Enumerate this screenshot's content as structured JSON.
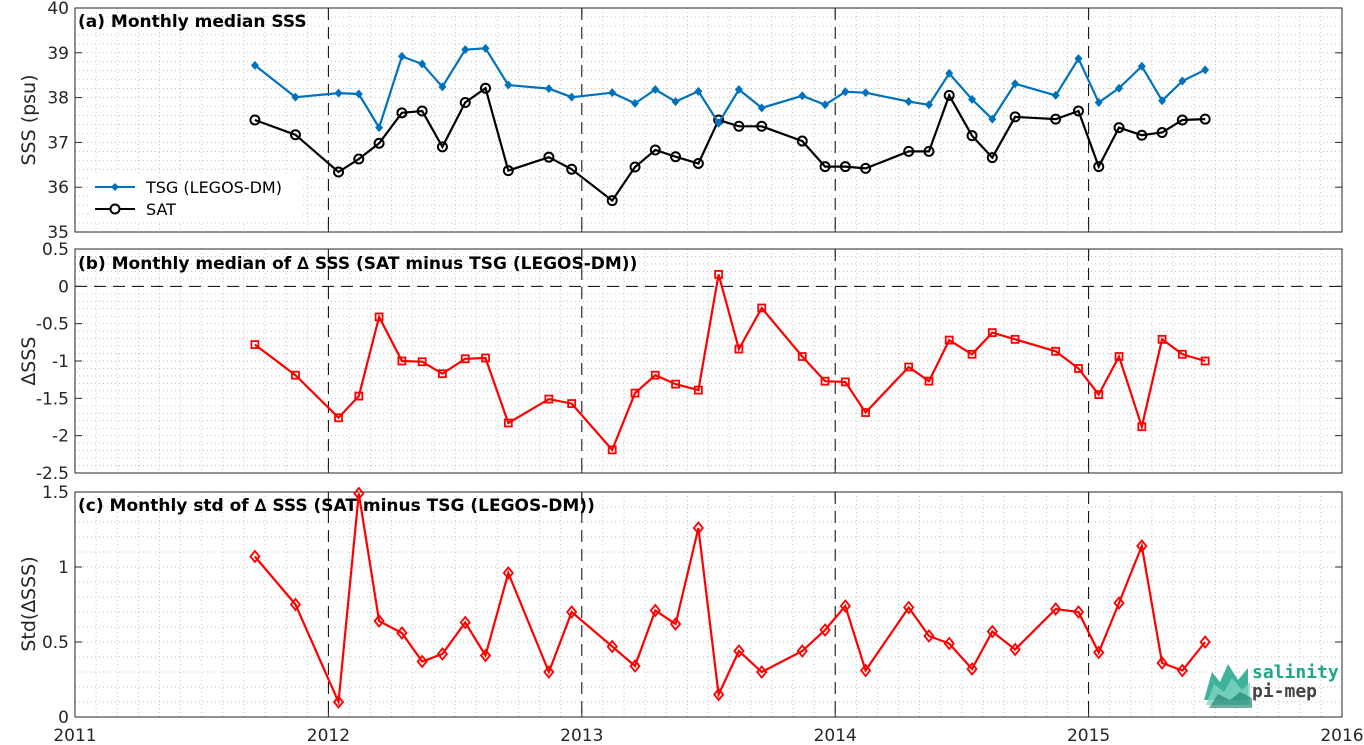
{
  "colors": {
    "tsg": "#0072BD",
    "sat": "#000000",
    "delta": "#FF0000",
    "grid": "#B0B0B0",
    "axis": "#262626",
    "logo_teal": "#1FA58A"
  },
  "logo": {
    "line1": "salinity",
    "line2": "pi-mep",
    "icon": "salinity-pi-mep-logo-icon"
  },
  "chart_data": [
    {
      "type": "line",
      "title": "(a) Monthly median SSS",
      "ylabel": "SSS (psu)",
      "xlim": [
        2011,
        2016
      ],
      "ylim": [
        35,
        40
      ],
      "yticks": [
        35,
        36,
        37,
        38,
        39,
        40
      ],
      "grid": "minor-dotted",
      "vlines": [
        2012,
        2013,
        2014,
        2015
      ],
      "legend": {
        "placement": "bottom-left"
      },
      "series": [
        {
          "name": "TSG (LEGOS-DM)",
          "color_key": "tsg",
          "marker": "diamond-filled",
          "x": [
            2011.71,
            2011.87,
            2012.04,
            2012.12,
            2012.2,
            2012.29,
            2012.37,
            2012.45,
            2012.54,
            2012.62,
            2012.71,
            2012.87,
            2012.96,
            2013.12,
            2013.21,
            2013.29,
            2013.37,
            2013.46,
            2013.54,
            2013.62,
            2013.71,
            2013.87,
            2013.96,
            2014.04,
            2014.12,
            2014.29,
            2014.37,
            2014.45,
            2014.54,
            2014.62,
            2014.71,
            2014.87,
            2014.96,
            2015.04,
            2015.12,
            2015.21,
            2015.29,
            2015.37,
            2015.46
          ],
          "y": [
            38.72,
            38.01,
            38.1,
            38.08,
            37.33,
            38.92,
            38.75,
            38.24,
            39.07,
            39.1,
            38.28,
            38.2,
            38.01,
            38.11,
            37.87,
            38.18,
            37.91,
            38.14,
            37.43,
            38.18,
            37.77,
            38.04,
            37.84,
            38.13,
            38.11,
            37.91,
            37.84,
            38.54,
            37.96,
            37.52,
            38.31,
            38.05,
            38.87,
            37.89,
            38.21,
            38.7,
            37.93,
            38.37,
            38.62
          ]
        },
        {
          "name": "SAT",
          "color_key": "sat",
          "marker": "circle-open",
          "x": [
            2011.71,
            2011.87,
            2012.04,
            2012.12,
            2012.2,
            2012.29,
            2012.37,
            2012.45,
            2012.54,
            2012.62,
            2012.71,
            2012.87,
            2012.96,
            2013.12,
            2013.21,
            2013.29,
            2013.37,
            2013.46,
            2013.54,
            2013.62,
            2013.71,
            2013.87,
            2013.96,
            2014.04,
            2014.12,
            2014.29,
            2014.37,
            2014.45,
            2014.54,
            2014.62,
            2014.71,
            2014.87,
            2014.96,
            2015.04,
            2015.12,
            2015.21,
            2015.29,
            2015.37,
            2015.46
          ],
          "y": [
            37.5,
            37.17,
            36.34,
            36.63,
            36.98,
            37.66,
            37.7,
            36.9,
            37.89,
            38.21,
            36.37,
            36.67,
            36.4,
            35.7,
            36.45,
            36.83,
            36.68,
            36.53,
            37.5,
            37.36,
            37.36,
            37.03,
            36.46,
            36.46,
            36.42,
            36.8,
            36.8,
            38.05,
            37.15,
            36.66,
            37.57,
            37.52,
            37.7,
            36.46,
            37.33,
            37.16,
            37.22,
            37.5,
            37.52
          ]
        }
      ]
    },
    {
      "type": "line",
      "title": "(b) Monthly median of ∆ SSS (SAT minus TSG (LEGOS-DM))",
      "ylabel": "∆SSS",
      "xlim": [
        2011,
        2016
      ],
      "ylim": [
        -2.5,
        0.5
      ],
      "yticks": [
        -2.5,
        -2,
        -1.5,
        -1,
        -0.5,
        0,
        0.5
      ],
      "grid": "minor-dotted",
      "vlines": [
        2012,
        2013,
        2014,
        2015
      ],
      "hlines": [
        0
      ],
      "series": [
        {
          "color_key": "delta",
          "marker": "square-open",
          "x": [
            2011.71,
            2011.87,
            2012.04,
            2012.12,
            2012.2,
            2012.29,
            2012.37,
            2012.45,
            2012.54,
            2012.62,
            2012.71,
            2012.87,
            2012.96,
            2013.12,
            2013.21,
            2013.29,
            2013.37,
            2013.46,
            2013.54,
            2013.62,
            2013.71,
            2013.87,
            2013.96,
            2014.04,
            2014.12,
            2014.29,
            2014.37,
            2014.45,
            2014.54,
            2014.62,
            2014.71,
            2014.87,
            2014.96,
            2015.04,
            2015.12,
            2015.21,
            2015.29,
            2015.37,
            2015.46
          ],
          "y": [
            -0.78,
            -1.19,
            -1.76,
            -1.47,
            -0.41,
            -1.0,
            -1.01,
            -1.17,
            -0.97,
            -0.96,
            -1.83,
            -1.51,
            -1.57,
            -2.19,
            -1.43,
            -1.19,
            -1.31,
            -1.39,
            0.16,
            -0.84,
            -0.29,
            -0.94,
            -1.27,
            -1.28,
            -1.69,
            -1.08,
            -1.27,
            -0.72,
            -0.91,
            -0.62,
            -0.71,
            -0.87,
            -1.1,
            -1.45,
            -0.94,
            -1.88,
            -0.71,
            -0.91,
            -1.0
          ]
        }
      ]
    },
    {
      "type": "line",
      "title": "(c) Monthly std of ∆ SSS (SAT minus TSG (LEGOS-DM))",
      "ylabel": "Std(∆SSS)",
      "xlim": [
        2011,
        2016
      ],
      "ylim": [
        0,
        1.5
      ],
      "yticks": [
        0,
        0.5,
        1,
        1.5
      ],
      "xticks": [
        2011,
        2012,
        2013,
        2014,
        2015,
        2016
      ],
      "grid": "minor-dotted",
      "vlines": [
        2012,
        2013,
        2014,
        2015
      ],
      "series": [
        {
          "color_key": "delta",
          "marker": "diamond-open",
          "x": [
            2011.71,
            2011.87,
            2012.04,
            2012.12,
            2012.2,
            2012.29,
            2012.37,
            2012.45,
            2012.54,
            2012.62,
            2012.71,
            2012.87,
            2012.96,
            2013.12,
            2013.21,
            2013.29,
            2013.37,
            2013.46,
            2013.54,
            2013.62,
            2013.71,
            2013.87,
            2013.96,
            2014.04,
            2014.12,
            2014.29,
            2014.37,
            2014.45,
            2014.54,
            2014.62,
            2014.71,
            2014.87,
            2014.96,
            2015.04,
            2015.12,
            2015.21,
            2015.29,
            2015.37,
            2015.46
          ],
          "y": [
            1.07,
            0.75,
            0.1,
            1.49,
            0.64,
            0.56,
            0.37,
            0.42,
            0.63,
            0.41,
            0.96,
            0.3,
            0.7,
            0.47,
            0.34,
            0.71,
            0.62,
            1.26,
            0.15,
            0.44,
            0.3,
            0.44,
            0.58,
            0.74,
            0.31,
            0.73,
            0.54,
            0.49,
            0.32,
            0.57,
            0.45,
            0.72,
            0.7,
            0.43,
            0.76,
            1.14,
            0.36,
            0.31,
            0.5
          ]
        }
      ]
    }
  ]
}
